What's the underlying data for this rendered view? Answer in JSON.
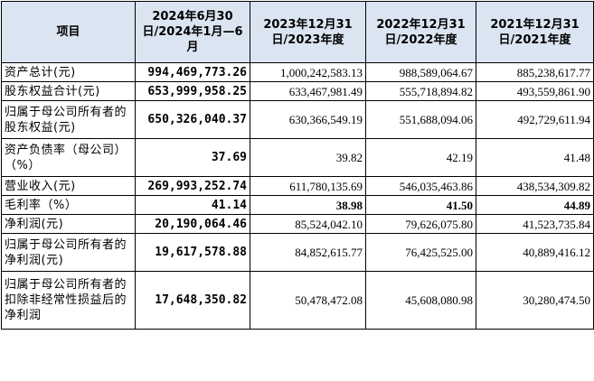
{
  "table": {
    "headers": [
      "项目",
      "2024年6月30日/2024年1月—6月",
      "2023年12月31日/2023年度",
      "2022年12月31日/2022年度",
      "2021年12月31日/2021年度"
    ],
    "rows": [
      {
        "label": "资产总计(元)",
        "values": [
          "994,469,773.26",
          "1,000,242,583.13",
          "988,589,064.67",
          "885,238,617.77"
        ]
      },
      {
        "label": "股东权益合计(元)",
        "values": [
          "653,999,958.25",
          "633,467,981.49",
          "555,718,894.82",
          "493,559,861.90"
        ]
      },
      {
        "label": "归属于母公司所有者的股东权益(元)",
        "values": [
          "650,326,040.37",
          "630,366,549.19",
          "551,688,094.06",
          "492,729,611.94"
        ]
      },
      {
        "label": "资产负债率（母公司）（%）",
        "values": [
          "37.69",
          "39.82",
          "42.19",
          "41.48"
        ]
      },
      {
        "label": "营业收入(元)",
        "values": [
          "269,993,252.74",
          "611,780,135.69",
          "546,035,463.86",
          "438,534,309.82"
        ]
      },
      {
        "label": "毛利率（%）",
        "values": [
          "41.14",
          "38.98",
          "41.50",
          "44.89"
        ]
      },
      {
        "label": "净利润(元)",
        "values": [
          "20,190,064.46",
          "85,524,042.10",
          "79,626,075.80",
          "41,523,735.84"
        ]
      },
      {
        "label": "归属于母公司所有者的净利润(元)",
        "values": [
          "19,617,578.88",
          "84,852,615.77",
          "76,425,525.00",
          "40,889,416.12"
        ]
      },
      {
        "label": "归属于母公司所有者的扣除非经常性损益后的净利润",
        "values": [
          "17,648,350.82",
          "50,478,472.08",
          "45,608,080.98",
          "30,280,474.50"
        ]
      }
    ]
  }
}
